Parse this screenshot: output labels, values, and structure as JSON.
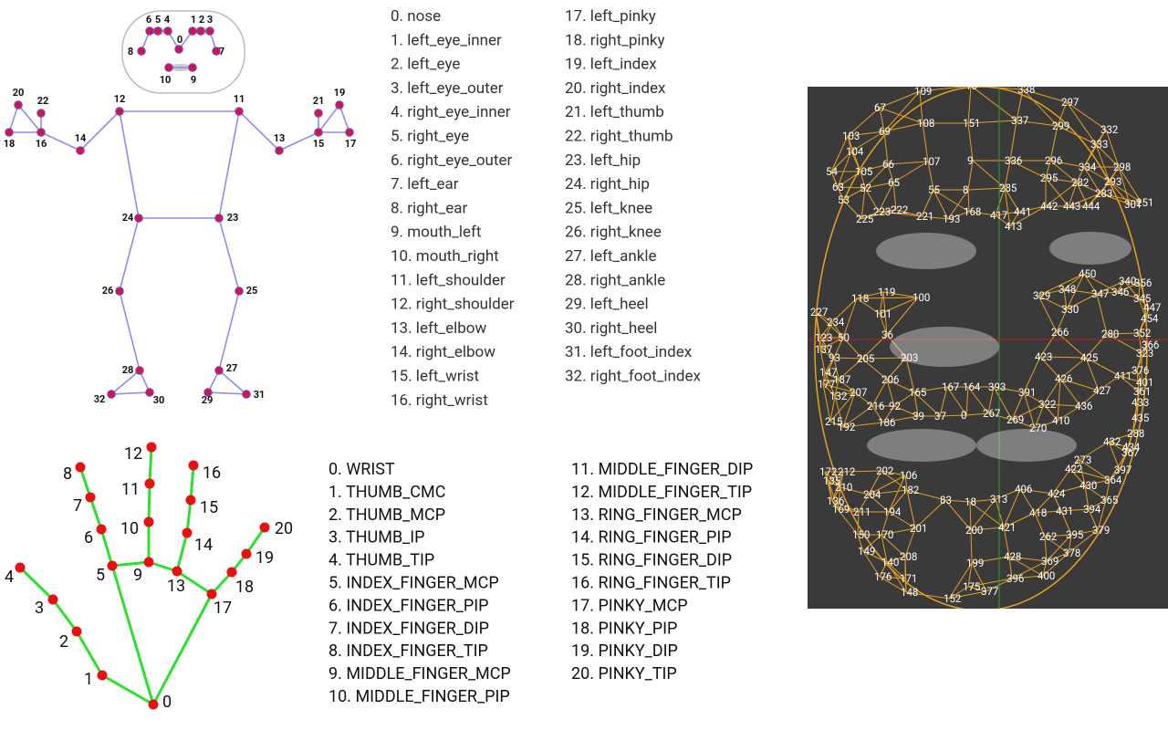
{
  "pose": {
    "node_labels": [
      "0",
      "1",
      "2",
      "3",
      "4",
      "5",
      "6",
      "7",
      "8",
      "9",
      "10",
      "11",
      "12",
      "13",
      "14",
      "15",
      "16",
      "17",
      "18",
      "19",
      "20",
      "21",
      "22",
      "23",
      "24",
      "25",
      "26",
      "27",
      "28",
      "29",
      "30",
      "31",
      "32"
    ],
    "list": [
      "0. nose",
      "1. left_eye_inner",
      "2. left_eye",
      "3. left_eye_outer",
      "4. right_eye_inner",
      "5. right_eye",
      "6. right_eye_outer",
      "7. left_ear",
      "8. right_ear",
      "9. mouth_left",
      "10. mouth_right",
      "11. left_shoulder",
      "12. right_shoulder",
      "13. left_elbow",
      "14. right_elbow",
      "15. left_wrist",
      "16. right_wrist",
      "17. left_pinky",
      "18. right_pinky",
      "19. left_index",
      "20. right_index",
      "21. left_thumb",
      "22. right_thumb",
      "23. left_hip",
      "24. right_hip",
      "25. left_knee",
      "26. right_knee",
      "27. left_ankle",
      "28. right_ankle",
      "29. left_heel",
      "30. right_heel",
      "31. left_foot_index",
      "32. right_foot_index"
    ]
  },
  "hand": {
    "node_labels": [
      "0",
      "1",
      "2",
      "3",
      "4",
      "5",
      "6",
      "7",
      "8",
      "9",
      "10",
      "11",
      "12",
      "13",
      "14",
      "15",
      "16",
      "17",
      "18",
      "19",
      "20"
    ],
    "list": [
      "0. WRIST",
      "1. THUMB_CMC",
      "2. THUMB_MCP",
      "3. THUMB_IP",
      "4. THUMB_TIP",
      "5. INDEX_FINGER_MCP",
      "6. INDEX_FINGER_PIP",
      "7. INDEX_FINGER_DIP",
      "8. INDEX_FINGER_TIP",
      "9. MIDDLE_FINGER_MCP",
      "10. MIDDLE_FINGER_PIP",
      "11. MIDDLE_FINGER_DIP",
      "12. MIDDLE_FINGER_TIP",
      "13. RING_FINGER_MCP",
      "14. RING_FINGER_PIP",
      "15. RING_FINGER_DIP",
      "16. RING_FINGER_TIP",
      "17. PINKY_MCP",
      "18. PINKY_PIP",
      "19. PINKY_DIP",
      "20. PINKY_TIP"
    ]
  },
  "face": {
    "labels": [
      "109",
      "10",
      "338",
      "297",
      "67",
      "108",
      "151",
      "337",
      "299",
      "332",
      "103",
      "69",
      "333",
      "104",
      "66",
      "107",
      "9",
      "336",
      "296",
      "334",
      "298",
      "54",
      "105",
      "65",
      "52",
      "55",
      "8",
      "285",
      "295",
      "282",
      "293",
      "283",
      "63",
      "53",
      "221",
      "193",
      "168",
      "417",
      "441",
      "442",
      "443",
      "444",
      "301",
      "251",
      "223",
      "222",
      "225",
      "413",
      "118",
      "119",
      "101",
      "100",
      "234",
      "227",
      "123",
      "50",
      "137",
      "36",
      "93",
      "205",
      "203",
      "206",
      "266",
      "280",
      "352",
      "366",
      "323",
      "425",
      "423",
      "426",
      "411",
      "376",
      "401",
      "361",
      "433",
      "427",
      "436",
      "322",
      "391",
      "393",
      "164",
      "167",
      "165",
      "147",
      "187",
      "177",
      "132",
      "207",
      "216",
      "92",
      "215",
      "192",
      "186",
      "39",
      "37",
      "0",
      "267",
      "269",
      "270",
      "410",
      "435",
      "288",
      "432",
      "434",
      "367",
      "273",
      "422",
      "397",
      "364",
      "430",
      "424",
      "365",
      "394",
      "431",
      "418",
      "406",
      "313",
      "18",
      "83",
      "182",
      "204",
      "210",
      "202",
      "106",
      "212",
      "172",
      "135",
      "136",
      "169",
      "211",
      "194",
      "201",
      "200",
      "421",
      "262",
      "395",
      "379",
      "369",
      "378",
      "428",
      "199",
      "208",
      "140",
      "149",
      "150",
      "170",
      "176",
      "171",
      "148",
      "152",
      "175",
      "377",
      "396",
      "400",
      "330",
      "347",
      "346",
      "340",
      "356",
      "345",
      "447",
      "454",
      "348",
      "329",
      "450"
    ]
  }
}
